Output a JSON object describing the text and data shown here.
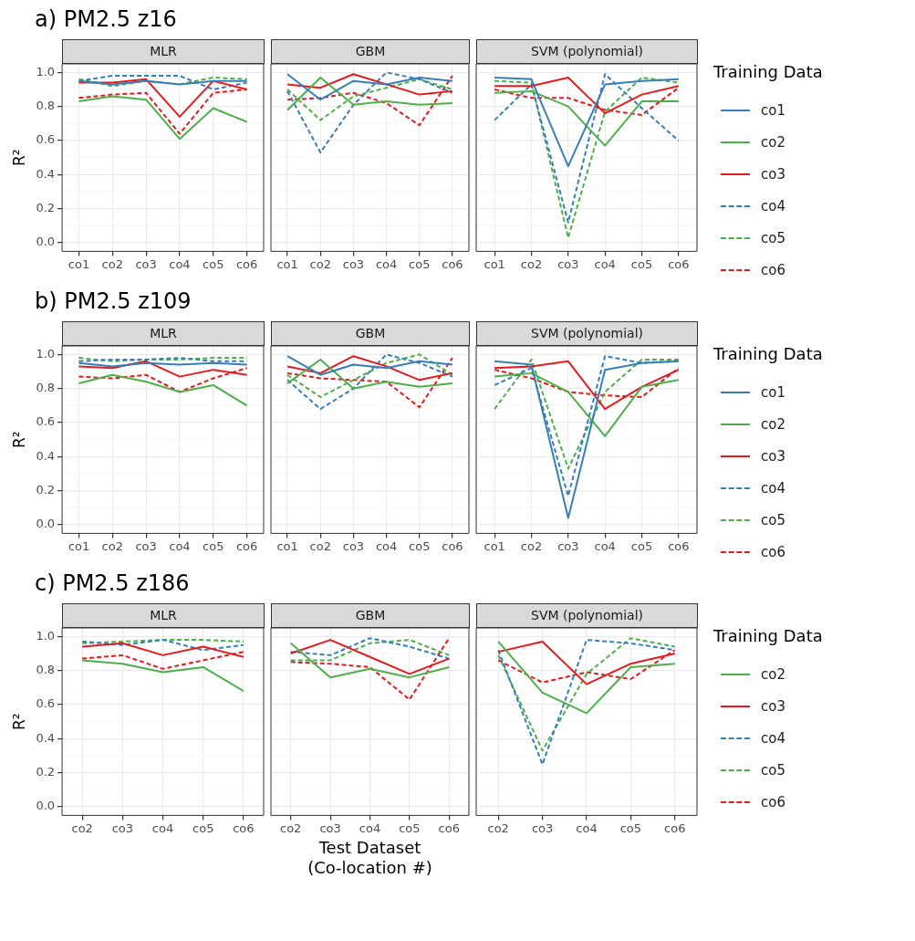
{
  "chart_data": [
    {
      "type": "line",
      "annotations": [
        "a) PM2.5 z16"
      ],
      "title": "MLR",
      "ylabel": "R²",
      "categories": [
        "co1",
        "co2",
        "co3",
        "co4",
        "co5",
        "co6"
      ],
      "ylim": [
        -0.05,
        1.05
      ],
      "yticks": [
        {
          "value": 0,
          "label": "0.0"
        },
        {
          "value": 0.2,
          "label": "0.2"
        },
        {
          "value": 0.4,
          "label": "0.4"
        },
        {
          "value": 0.6,
          "label": "0.6"
        },
        {
          "value": 0.8,
          "label": "0.8"
        },
        {
          "value": 1,
          "label": "1.0"
        }
      ],
      "grid": true,
      "series": [
        {
          "color": "#377eb8",
          "line_style": "solid",
          "values": [
            0.95,
            0.93,
            0.95,
            0.93,
            0.95,
            0.95
          ]
        },
        {
          "color": "#4daf4a",
          "line_style": "solid",
          "values": [
            0.83,
            0.86,
            0.84,
            0.61,
            0.79,
            0.71
          ]
        },
        {
          "color": "#e41a1c",
          "line_style": "solid",
          "values": [
            0.94,
            0.94,
            0.96,
            0.74,
            0.95,
            0.9
          ]
        },
        {
          "color": "#377eb8",
          "line_style": "dashed",
          "values": [
            0.95,
            0.98,
            0.98,
            0.98,
            0.9,
            0.94
          ]
        },
        {
          "color": "#4daf4a",
          "line_style": "dashed",
          "values": [
            0.96,
            0.92,
            0.95,
            0.93,
            0.97,
            0.96
          ]
        },
        {
          "color": "#e41a1c",
          "line_style": "dashed",
          "values": [
            0.85,
            0.87,
            0.88,
            0.64,
            0.88,
            0.9
          ]
        }
      ]
    },
    {
      "type": "line",
      "title": "GBM",
      "categories": [
        "co1",
        "co2",
        "co3",
        "co4",
        "co5",
        "co6"
      ],
      "ylim": [
        -0.05,
        1.05
      ],
      "yticks": [
        0,
        0.2,
        0.4,
        0.6,
        0.8,
        1
      ],
      "grid": true,
      "tick_labels": "x",
      "series": [
        {
          "color": "#377eb8",
          "line_style": "solid",
          "values": [
            0.99,
            0.84,
            0.95,
            0.93,
            0.97,
            0.95
          ]
        },
        {
          "color": "#4daf4a",
          "line_style": "solid",
          "values": [
            0.78,
            0.97,
            0.81,
            0.83,
            0.81,
            0.82
          ]
        },
        {
          "color": "#e41a1c",
          "line_style": "solid",
          "values": [
            0.93,
            0.91,
            0.99,
            0.93,
            0.87,
            0.89
          ]
        },
        {
          "color": "#377eb8",
          "line_style": "dashed",
          "values": [
            0.89,
            0.53,
            0.81,
            1.0,
            0.96,
            0.88
          ]
        },
        {
          "color": "#4daf4a",
          "line_style": "dashed",
          "values": [
            0.9,
            0.72,
            0.86,
            0.91,
            0.96,
            0.9
          ]
        },
        {
          "color": "#e41a1c",
          "line_style": "dashed",
          "values": [
            0.84,
            0.85,
            0.88,
            0.82,
            0.69,
            0.98
          ]
        }
      ]
    },
    {
      "type": "line",
      "title": "SVM (polynomial)",
      "categories": [
        "co1",
        "co2",
        "co3",
        "co4",
        "co5",
        "co6"
      ],
      "ylim": [
        -0.05,
        1.05
      ],
      "yticks": [
        0,
        0.2,
        0.4,
        0.6,
        0.8,
        1
      ],
      "grid": true,
      "tick_labels": "x",
      "legend": "right",
      "legend_title": "Training Data",
      "series": [
        {
          "name": "co1",
          "color": "#377eb8",
          "line_style": "solid",
          "values": [
            0.97,
            0.96,
            0.45,
            0.93,
            0.95,
            0.96
          ]
        },
        {
          "name": "co2",
          "color": "#4daf4a",
          "line_style": "solid",
          "values": [
            0.88,
            0.89,
            0.8,
            0.57,
            0.83,
            0.83
          ]
        },
        {
          "name": "co3",
          "color": "#e41a1c",
          "line_style": "solid",
          "values": [
            0.92,
            0.92,
            0.97,
            0.76,
            0.87,
            0.92
          ]
        },
        {
          "name": "co4",
          "color": "#377eb8",
          "line_style": "dashed",
          "values": [
            0.72,
            0.93,
            0.12,
            0.99,
            0.79,
            0.6
          ]
        },
        {
          "name": "co5",
          "color": "#4daf4a",
          "line_style": "dashed",
          "values": [
            0.95,
            0.94,
            0.03,
            0.77,
            0.97,
            0.94
          ]
        },
        {
          "name": "co6",
          "color": "#e41a1c",
          "line_style": "dashed",
          "values": [
            0.9,
            0.85,
            0.85,
            0.78,
            0.75,
            0.91
          ]
        }
      ]
    },
    {
      "type": "line",
      "annotations": [
        "b) PM2.5 z109"
      ],
      "title": "MLR",
      "ylabel": "R²",
      "categories": [
        "co1",
        "co2",
        "co3",
        "co4",
        "co5",
        "co6"
      ],
      "ylim": [
        -0.05,
        1.05
      ],
      "yticks": [
        {
          "value": 0,
          "label": "0.0"
        },
        {
          "value": 0.2,
          "label": "0.2"
        },
        {
          "value": 0.4,
          "label": "0.4"
        },
        {
          "value": 0.6,
          "label": "0.6"
        },
        {
          "value": 0.8,
          "label": "0.8"
        },
        {
          "value": 1,
          "label": "1.0"
        }
      ],
      "grid": true,
      "series": [
        {
          "color": "#377eb8",
          "line_style": "solid",
          "values": [
            0.95,
            0.93,
            0.95,
            0.94,
            0.95,
            0.94
          ]
        },
        {
          "color": "#4daf4a",
          "line_style": "solid",
          "values": [
            0.83,
            0.88,
            0.84,
            0.78,
            0.82,
            0.7
          ]
        },
        {
          "color": "#e41a1c",
          "line_style": "solid",
          "values": [
            0.93,
            0.92,
            0.96,
            0.87,
            0.91,
            0.88
          ]
        },
        {
          "color": "#377eb8",
          "line_style": "dashed",
          "values": [
            0.96,
            0.97,
            0.97,
            0.98,
            0.96,
            0.96
          ]
        },
        {
          "color": "#4daf4a",
          "line_style": "dashed",
          "values": [
            0.98,
            0.96,
            0.97,
            0.97,
            0.98,
            0.98
          ]
        },
        {
          "color": "#e41a1c",
          "line_style": "dashed",
          "values": [
            0.87,
            0.86,
            0.88,
            0.78,
            0.86,
            0.92
          ]
        }
      ]
    },
    {
      "type": "line",
      "title": "GBM",
      "categories": [
        "co1",
        "co2",
        "co3",
        "co4",
        "co5",
        "co6"
      ],
      "ylim": [
        -0.05,
        1.05
      ],
      "yticks": [
        0,
        0.2,
        0.4,
        0.6,
        0.8,
        1
      ],
      "grid": true,
      "tick_labels": "x",
      "series": [
        {
          "color": "#377eb8",
          "line_style": "solid",
          "values": [
            0.99,
            0.88,
            0.94,
            0.92,
            0.96,
            0.94
          ]
        },
        {
          "color": "#4daf4a",
          "line_style": "solid",
          "values": [
            0.83,
            0.97,
            0.8,
            0.84,
            0.81,
            0.83
          ]
        },
        {
          "color": "#e41a1c",
          "line_style": "solid",
          "values": [
            0.93,
            0.89,
            0.99,
            0.93,
            0.85,
            0.89
          ]
        },
        {
          "color": "#377eb8",
          "line_style": "dashed",
          "values": [
            0.85,
            0.68,
            0.8,
            1.0,
            0.95,
            0.87
          ]
        },
        {
          "color": "#4daf4a",
          "line_style": "dashed",
          "values": [
            0.88,
            0.75,
            0.85,
            0.95,
            1.0,
            0.88
          ]
        },
        {
          "color": "#e41a1c",
          "line_style": "dashed",
          "values": [
            0.89,
            0.86,
            0.85,
            0.84,
            0.69,
            0.98
          ]
        }
      ]
    },
    {
      "type": "line",
      "title": "SVM (polynomial)",
      "categories": [
        "co1",
        "co2",
        "co3",
        "co4",
        "co5",
        "co6"
      ],
      "ylim": [
        -0.05,
        1.05
      ],
      "yticks": [
        0,
        0.2,
        0.4,
        0.6,
        0.8,
        1
      ],
      "grid": true,
      "tick_labels": "x",
      "legend": "right",
      "legend_title": "Training Data",
      "series": [
        {
          "name": "co1",
          "color": "#377eb8",
          "line_style": "solid",
          "values": [
            0.96,
            0.94,
            0.04,
            0.91,
            0.95,
            0.96
          ]
        },
        {
          "name": "co2",
          "color": "#4daf4a",
          "line_style": "solid",
          "values": [
            0.87,
            0.89,
            0.78,
            0.52,
            0.81,
            0.85
          ]
        },
        {
          "name": "co3",
          "color": "#e41a1c",
          "line_style": "solid",
          "values": [
            0.92,
            0.93,
            0.96,
            0.68,
            0.81,
            0.91
          ]
        },
        {
          "name": "co4",
          "color": "#377eb8",
          "line_style": "dashed",
          "values": [
            0.82,
            0.92,
            0.17,
            0.99,
            0.95,
            0.96
          ]
        },
        {
          "name": "co5",
          "color": "#4daf4a",
          "line_style": "dashed",
          "values": [
            0.68,
            0.97,
            0.33,
            0.78,
            0.97,
            0.97
          ]
        },
        {
          "name": "co6",
          "color": "#e41a1c",
          "line_style": "dashed",
          "values": [
            0.91,
            0.86,
            0.78,
            0.76,
            0.75,
            0.92
          ]
        }
      ]
    },
    {
      "type": "line",
      "annotations": [
        "c) PM2.5 z186"
      ],
      "title": "MLR",
      "ylabel": "R²",
      "categories": [
        "co2",
        "co3",
        "co4",
        "co5",
        "co6"
      ],
      "ylim": [
        -0.05,
        1.05
      ],
      "yticks": [
        {
          "value": 0,
          "label": "0.0"
        },
        {
          "value": 0.2,
          "label": "0.2"
        },
        {
          "value": 0.4,
          "label": "0.4"
        },
        {
          "value": 0.6,
          "label": "0.6"
        },
        {
          "value": 0.8,
          "label": "0.8"
        },
        {
          "value": 1,
          "label": "1.0"
        }
      ],
      "grid": true,
      "series": [
        {
          "color": "#4daf4a",
          "line_style": "solid",
          "values": [
            0.86,
            0.84,
            0.79,
            0.82,
            0.68
          ]
        },
        {
          "color": "#e41a1c",
          "line_style": "solid",
          "values": [
            0.94,
            0.96,
            0.89,
            0.94,
            0.88
          ]
        },
        {
          "color": "#377eb8",
          "line_style": "dashed",
          "values": [
            0.97,
            0.95,
            0.98,
            0.92,
            0.95
          ]
        },
        {
          "color": "#4daf4a",
          "line_style": "dashed",
          "values": [
            0.96,
            0.97,
            0.98,
            0.98,
            0.97
          ]
        },
        {
          "color": "#e41a1c",
          "line_style": "dashed",
          "values": [
            0.87,
            0.89,
            0.81,
            0.86,
            0.91
          ]
        }
      ]
    },
    {
      "type": "line",
      "title": "GBM",
      "xlabel": "Test Dataset (Co-location #)",
      "categories": [
        "co2",
        "co3",
        "co4",
        "co5",
        "co6"
      ],
      "ylim": [
        -0.05,
        1.05
      ],
      "yticks": [
        0,
        0.2,
        0.4,
        0.6,
        0.8,
        1
      ],
      "grid": true,
      "tick_labels": "x",
      "series": [
        {
          "color": "#4daf4a",
          "line_style": "solid",
          "values": [
            0.96,
            0.76,
            0.81,
            0.76,
            0.82
          ]
        },
        {
          "color": "#e41a1c",
          "line_style": "solid",
          "values": [
            0.9,
            0.98,
            0.88,
            0.78,
            0.87
          ]
        },
        {
          "color": "#377eb8",
          "line_style": "dashed",
          "values": [
            0.91,
            0.89,
            0.99,
            0.94,
            0.87
          ]
        },
        {
          "color": "#4daf4a",
          "line_style": "dashed",
          "values": [
            0.86,
            0.86,
            0.96,
            0.98,
            0.89
          ]
        },
        {
          "color": "#e41a1c",
          "line_style": "dashed",
          "values": [
            0.85,
            0.84,
            0.82,
            0.63,
            0.99
          ]
        }
      ]
    },
    {
      "type": "line",
      "title": "SVM (polynomial)",
      "categories": [
        "co2",
        "co3",
        "co4",
        "co5",
        "co6"
      ],
      "ylim": [
        -0.05,
        1.05
      ],
      "yticks": [
        0,
        0.2,
        0.4,
        0.6,
        0.8,
        1
      ],
      "grid": true,
      "tick_labels": "x",
      "legend": "right",
      "legend_title": "Training Data",
      "series": [
        {
          "name": "co2",
          "color": "#4daf4a",
          "line_style": "solid",
          "values": [
            0.97,
            0.67,
            0.55,
            0.82,
            0.84
          ]
        },
        {
          "name": "co3",
          "color": "#e41a1c",
          "line_style": "solid",
          "values": [
            0.91,
            0.97,
            0.72,
            0.84,
            0.9
          ]
        },
        {
          "name": "co4",
          "color": "#377eb8",
          "line_style": "dashed",
          "values": [
            0.92,
            0.25,
            0.98,
            0.96,
            0.92
          ]
        },
        {
          "name": "co5",
          "color": "#4daf4a",
          "line_style": "dashed",
          "values": [
            0.89,
            0.33,
            0.78,
            0.99,
            0.94
          ]
        },
        {
          "name": "co6",
          "color": "#e41a1c",
          "line_style": "dashed",
          "values": [
            0.86,
            0.73,
            0.79,
            0.75,
            0.92
          ]
        }
      ]
    }
  ]
}
